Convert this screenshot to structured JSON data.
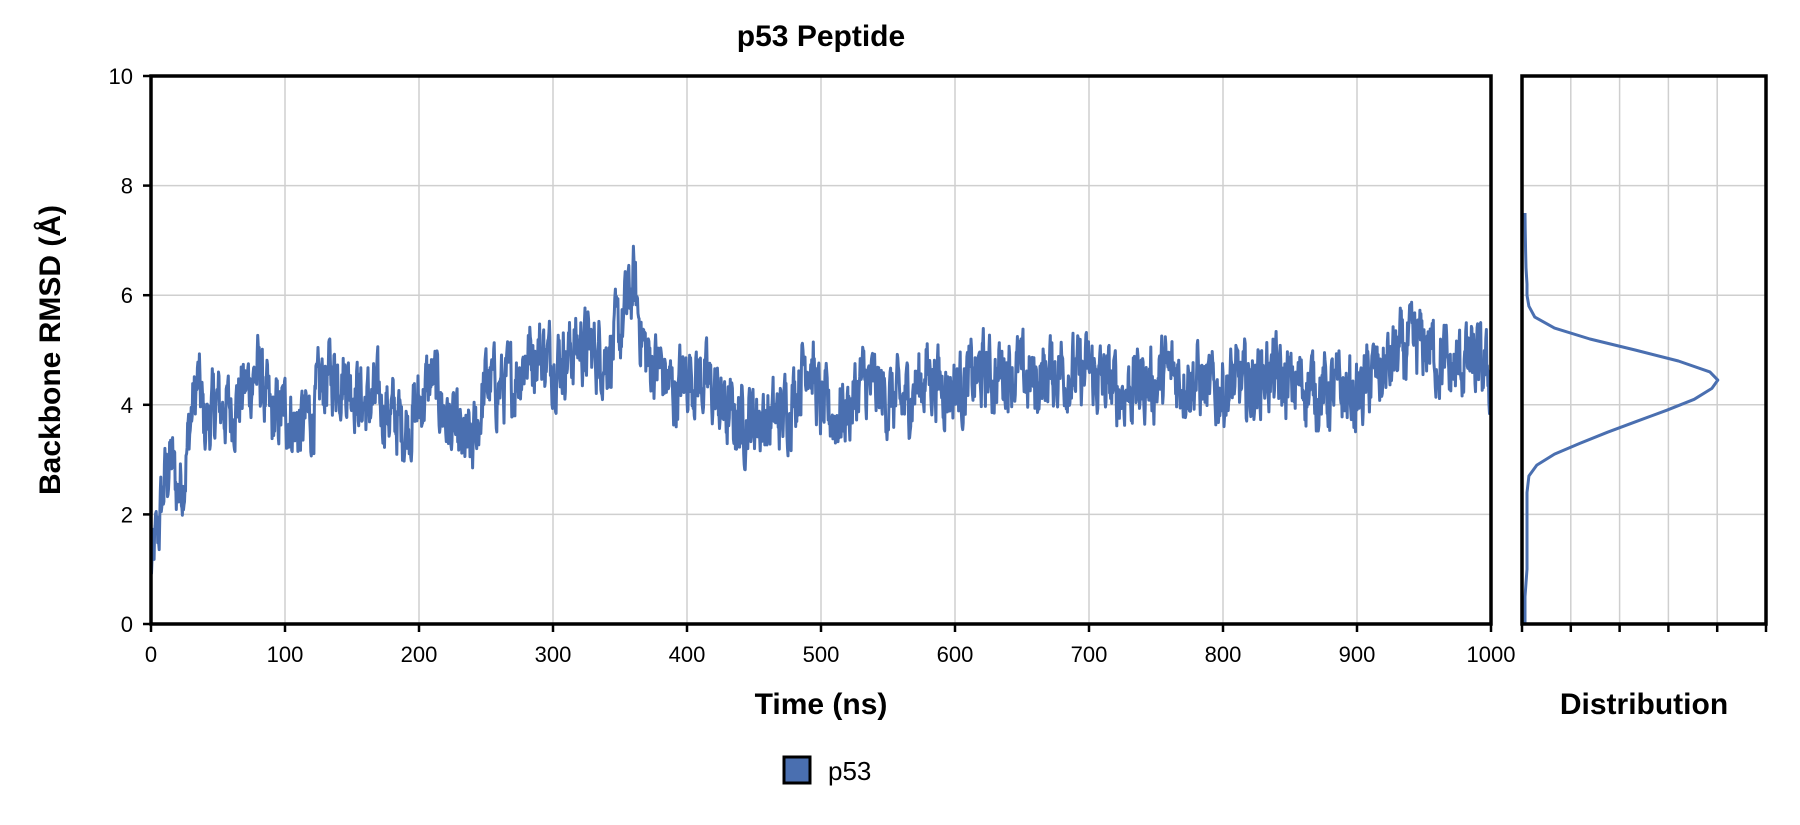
{
  "chart_data": [
    {
      "type": "line",
      "title": "p53 Peptide",
      "xlabel": "Time (ns)",
      "ylabel": "Backbone RMSD (Å)",
      "xlim": [
        0,
        1000
      ],
      "ylim": [
        0,
        10
      ],
      "x_ticks": [
        "0",
        "100",
        "200",
        "300",
        "400",
        "500",
        "600",
        "700",
        "800",
        "900",
        "1000"
      ],
      "y_ticks": [
        "0",
        "2",
        "4",
        "6",
        "8",
        "10"
      ],
      "grid": true,
      "series_color": "#4a6fb0",
      "series": [
        {
          "name": "p53",
          "x": [
            0,
            5,
            10,
            15,
            20,
            25,
            30,
            35,
            40,
            50,
            60,
            70,
            80,
            90,
            100,
            110,
            120,
            130,
            140,
            150,
            160,
            170,
            180,
            190,
            200,
            210,
            220,
            230,
            240,
            250,
            260,
            270,
            280,
            290,
            300,
            310,
            320,
            330,
            340,
            350,
            360,
            370,
            380,
            390,
            400,
            410,
            420,
            430,
            440,
            450,
            460,
            470,
            480,
            490,
            500,
            510,
            520,
            530,
            540,
            550,
            560,
            570,
            580,
            590,
            600,
            610,
            620,
            630,
            640,
            650,
            660,
            670,
            680,
            690,
            700,
            710,
            720,
            730,
            740,
            750,
            760,
            770,
            780,
            790,
            800,
            810,
            820,
            830,
            840,
            850,
            860,
            870,
            880,
            890,
            900,
            910,
            920,
            930,
            940,
            950,
            960,
            970,
            980,
            990,
            1000
          ],
          "values": [
            1.0,
            1.6,
            2.6,
            3.0,
            2.4,
            2.8,
            3.8,
            4.4,
            3.6,
            4.0,
            3.9,
            4.3,
            4.6,
            3.7,
            3.9,
            3.6,
            3.8,
            4.5,
            4.6,
            4.4,
            4.0,
            4.1,
            3.8,
            3.6,
            4.0,
            4.5,
            3.8,
            3.3,
            3.2,
            4.4,
            4.3,
            4.4,
            4.9,
            5.0,
            4.8,
            4.9,
            5.1,
            5.0,
            4.9,
            5.3,
            6.2,
            4.8,
            4.7,
            4.2,
            4.6,
            4.5,
            4.2,
            3.8,
            3.7,
            3.8,
            3.7,
            3.8,
            4.2,
            5.0,
            3.9,
            3.8,
            3.9,
            4.4,
            4.3,
            4.1,
            4.0,
            4.3,
            4.6,
            4.4,
            4.3,
            4.4,
            4.6,
            4.5,
            4.7,
            4.5,
            4.4,
            4.6,
            4.7,
            4.5,
            4.6,
            4.4,
            4.3,
            4.3,
            4.4,
            4.4,
            4.6,
            4.5,
            4.5,
            4.2,
            4.3,
            4.4,
            4.3,
            4.6,
            4.5,
            4.3,
            4.4,
            4.3,
            4.2,
            4.3,
            4.1,
            4.5,
            4.6,
            4.9,
            5.0,
            5.1,
            4.9,
            4.6,
            4.8,
            4.7,
            4.5
          ]
        }
      ]
    },
    {
      "type": "area",
      "xlabel": "Distribution",
      "ylim": [
        0,
        10
      ],
      "y": [
        0,
        0.5,
        1.0,
        1.5,
        2.0,
        2.4,
        2.7,
        2.9,
        3.1,
        3.3,
        3.5,
        3.7,
        3.9,
        4.1,
        4.3,
        4.45,
        4.6,
        4.8,
        5.0,
        5.2,
        5.4,
        5.6,
        5.8,
        6.0,
        6.2,
        6.5,
        6.8,
        7.2,
        7.5
      ],
      "density": [
        0,
        0,
        0.01,
        0.01,
        0.01,
        0.01,
        0.02,
        0.06,
        0.15,
        0.28,
        0.42,
        0.57,
        0.72,
        0.86,
        0.95,
        0.98,
        0.94,
        0.78,
        0.56,
        0.33,
        0.15,
        0.05,
        0.02,
        0.01,
        0.01,
        0.005,
        0.003,
        0.001,
        0
      ]
    }
  ],
  "legend": {
    "label": "p53",
    "color": "#4a6fb0"
  }
}
